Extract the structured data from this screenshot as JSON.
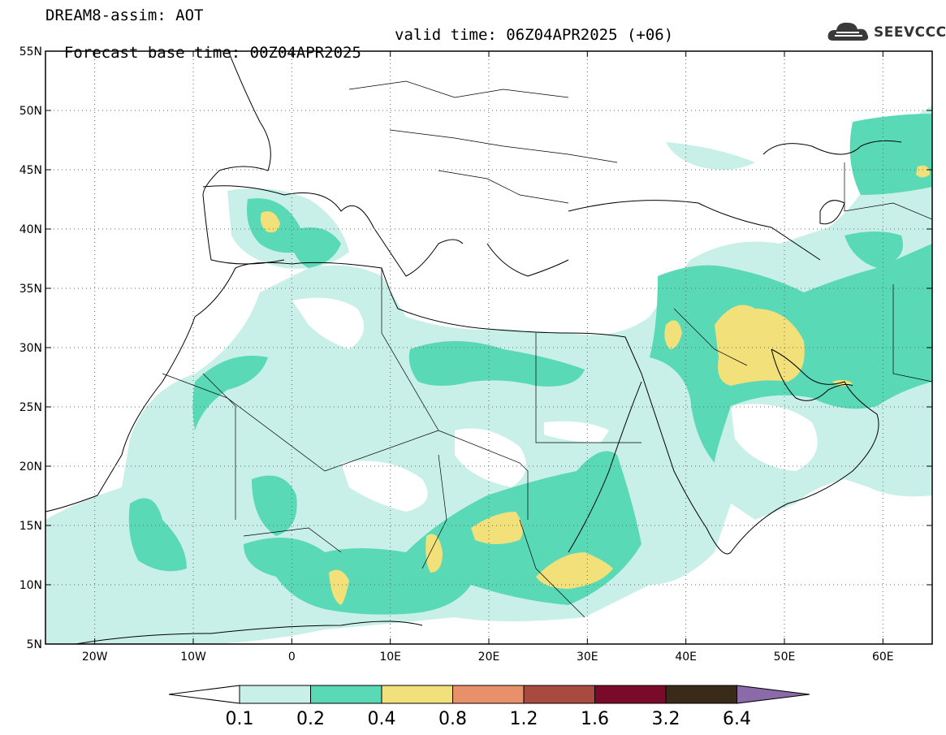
{
  "title": {
    "line1": "DREAM8-assim: AOT",
    "base_time": "Forecast base time: 00Z04APR2025",
    "valid_time": "valid time: 06Z04APR2025 (+06)"
  },
  "logo": {
    "text": "SEEVCCC",
    "icon": "cloud-icon"
  },
  "map": {
    "lat_labels": [
      "55N",
      "50N",
      "45N",
      "40N",
      "35N",
      "30N",
      "25N",
      "20N",
      "15N",
      "10N",
      "5N"
    ],
    "lon_labels": [
      "20W",
      "10W",
      "0",
      "10E",
      "20E",
      "30E",
      "40E",
      "50E",
      "60E"
    ],
    "extent": {
      "lon_min": -25,
      "lon_max": 65,
      "lat_min": 5,
      "lat_max": 55
    },
    "grid": "dotted"
  },
  "colorbar": {
    "levels": [
      "0.1",
      "0.2",
      "0.4",
      "0.8",
      "1.2",
      "1.6",
      "3.2",
      "6.4"
    ],
    "colors": [
      "#ffffff",
      "#c8f0e8",
      "#5ad9b6",
      "#f2e07a",
      "#e8906a",
      "#a84a40",
      "#7a0a2a",
      "#3a2a1a",
      "#8a6aa8"
    ]
  },
  "colors": {
    "c1": "#c8f0e8",
    "c2": "#5ad9b6",
    "c3": "#f2e07a",
    "land": "#000000"
  }
}
